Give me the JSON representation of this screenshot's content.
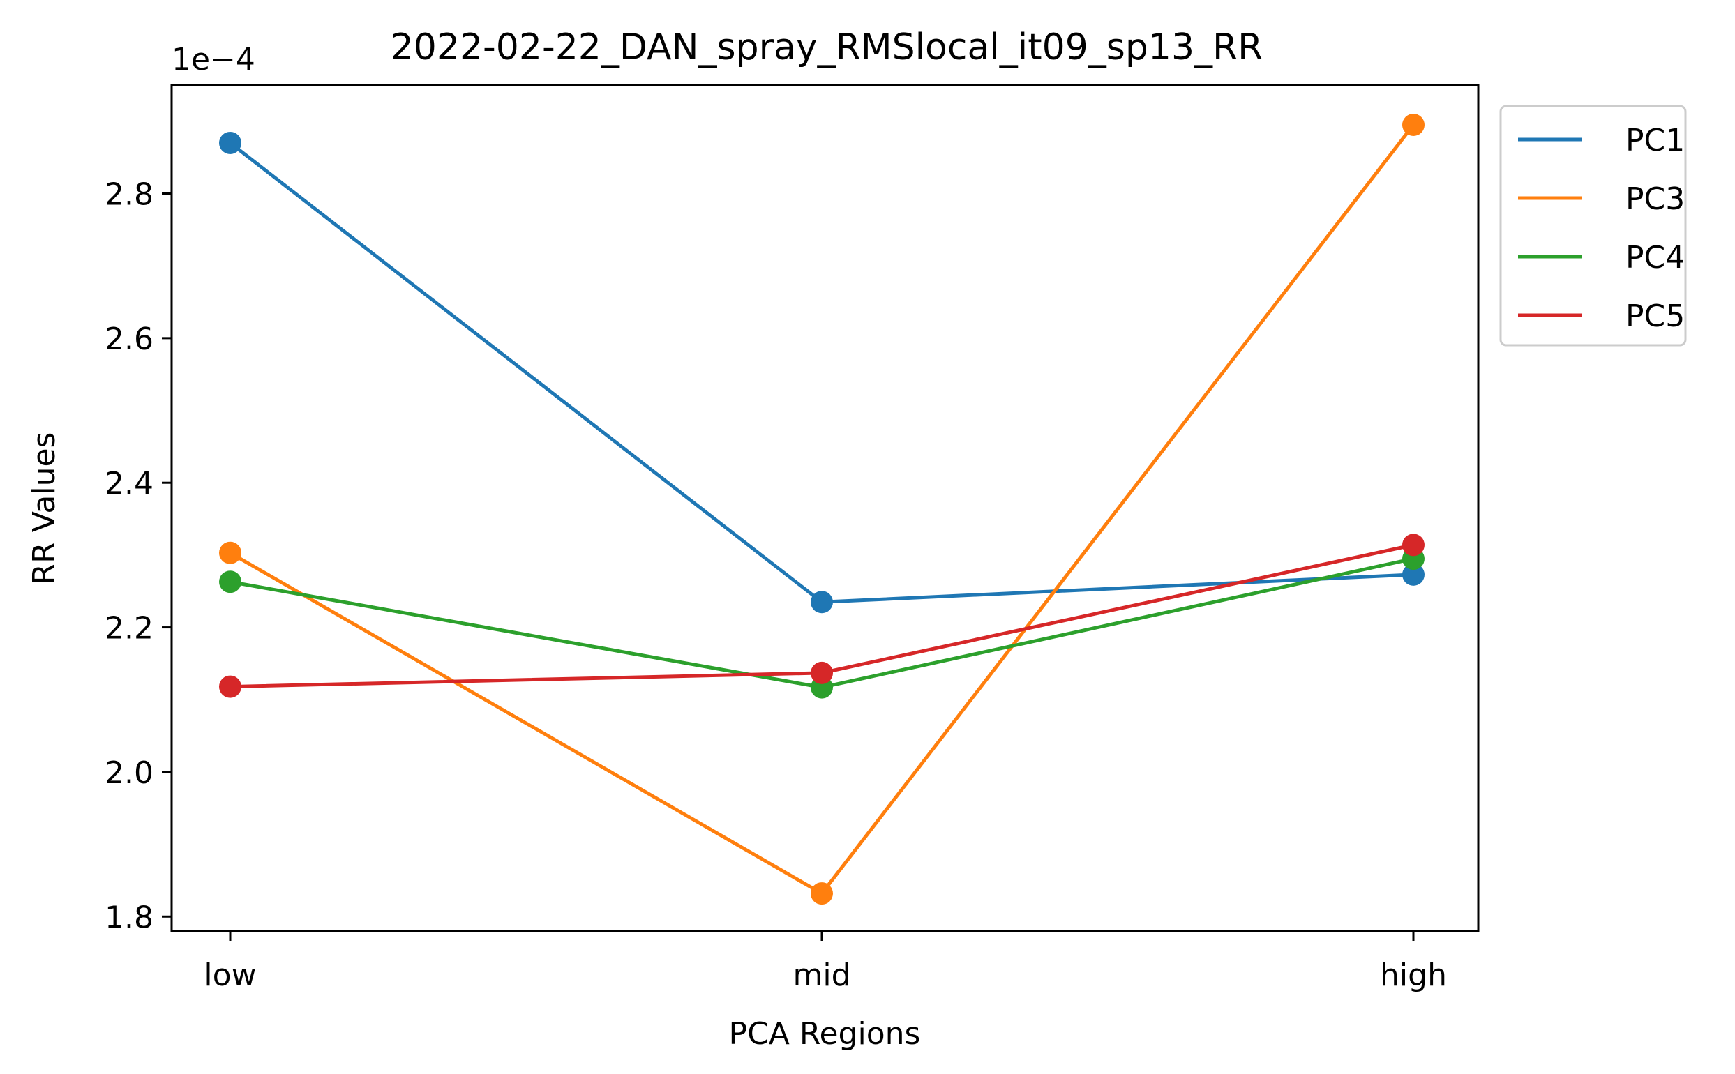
{
  "chart_data": {
    "type": "line",
    "title": "2022-02-22_DAN_spray_RMSlocal_it09_sp13_RR",
    "xlabel": "PCA Regions",
    "ylabel": "RR Values",
    "y_offset_label": "1e−4",
    "categories": [
      "low",
      "mid",
      "high"
    ],
    "ylim": [
      1.78,
      2.95
    ],
    "yticks": [
      1.8,
      2.0,
      2.2,
      2.4,
      2.6,
      2.8
    ],
    "ytick_labels": [
      "1.8",
      "2.0",
      "2.2",
      "2.4",
      "2.6",
      "2.8"
    ],
    "grid": false,
    "legend_position": "outside-top-right",
    "series": [
      {
        "name": "PC1",
        "color": "#1f77b4",
        "values": [
          2.87,
          2.235,
          2.273
        ]
      },
      {
        "name": "PC3",
        "color": "#ff7f0e",
        "values": [
          2.303,
          1.832,
          2.895
        ]
      },
      {
        "name": "PC4",
        "color": "#2ca02c",
        "values": [
          2.263,
          2.117,
          2.295
        ]
      },
      {
        "name": "PC5",
        "color": "#d62728",
        "values": [
          2.118,
          2.137,
          2.314
        ]
      }
    ]
  }
}
